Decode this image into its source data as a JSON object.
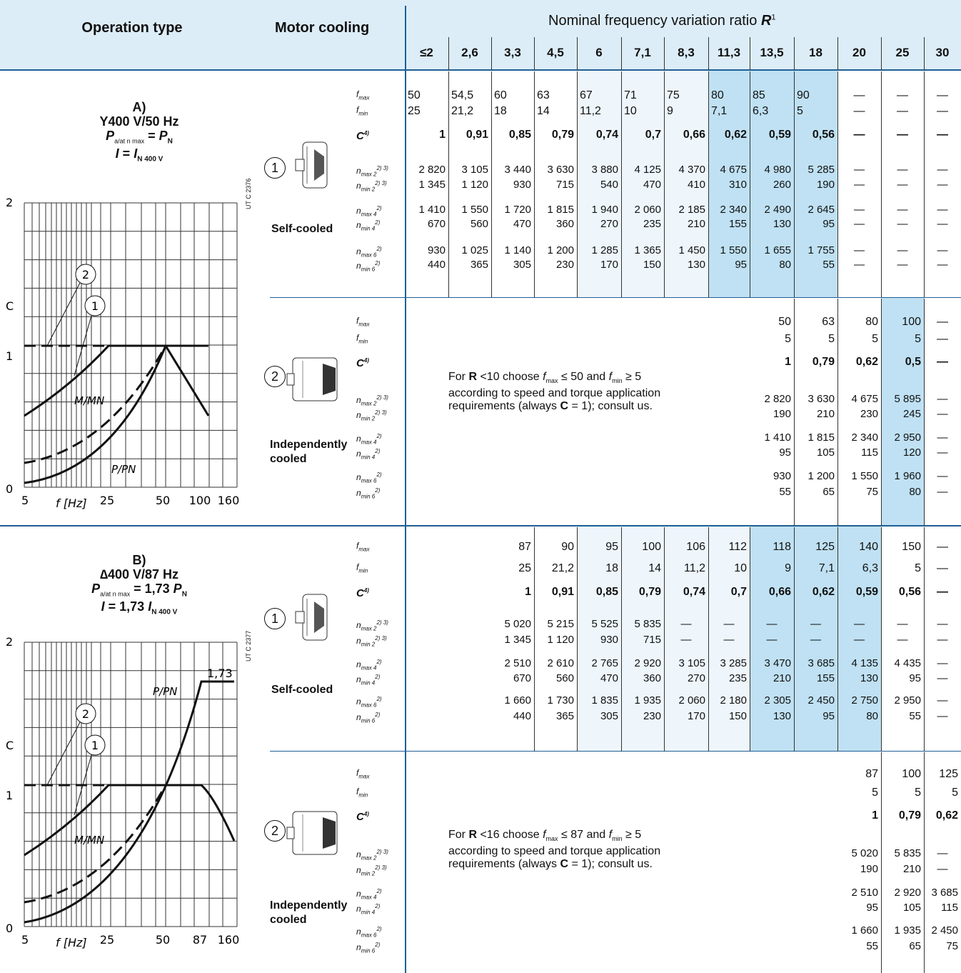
{
  "header": {
    "operation_type": "Operation type",
    "motor_cooling": "Motor cooling",
    "ratio_title": "Nominal frequency variation ratio",
    "ratio_symbol": "R",
    "ratio_sup": "1",
    "ratios": [
      "≤2",
      "2,6",
      "3,3",
      "4,5",
      "6",
      "7,1",
      "8,3",
      "11,3",
      "13,5",
      "18",
      "20",
      "25",
      "30"
    ]
  },
  "row_labels": {
    "fmax": "f",
    "fmax_sub": "max",
    "fmin": "f",
    "fmin_sub": "min",
    "C": "C",
    "C_sup": "4)",
    "nmax2": "n",
    "nmax2_sub": "max 2",
    "nmax2_sup": "2) 3)",
    "nmin2": "n",
    "nmin2_sub": "min 2",
    "nmin2_sup": "2) 3)",
    "nmax4": "n",
    "nmax4_sub": "max 4",
    "nmax4_sup": "2)",
    "nmin4": "n",
    "nmin4_sub": "min 4",
    "nmin4_sup": "2)",
    "nmax6": "n",
    "nmax6_sub": "max 6",
    "nmax6_sup": "2)",
    "nmin6": "n",
    "nmin6_sub": "min 6",
    "nmin6_sup": "2)"
  },
  "cooling": {
    "self": "Self-cooled",
    "indep_1": "Independently",
    "indep_2": "cooled",
    "num1": "1",
    "num2": "2"
  },
  "section_a": {
    "label": "A)",
    "line1": "Y400 V/50 Hz",
    "line2_p": "P",
    "line2_sub": "a/at n max",
    "line2_eq": " = ",
    "line2_pn": "P",
    "line2_pn_sub": "N",
    "line3_i": "I",
    "line3_eq": " = ",
    "line3_in": "I",
    "line3_in_sub": "N 400 V",
    "code": "UT C 2376",
    "graph": {
      "y_ticks": [
        "2",
        "C",
        "1",
        "0"
      ],
      "x_ticks": [
        "5",
        "25",
        "50",
        "100",
        "160"
      ],
      "xlabel": "f [Hz]",
      "curve1": "M/M",
      "curve1_sub": "N",
      "curve2": "P/P",
      "curve2_sub": "N",
      "marker1": "1",
      "marker2": "2"
    },
    "self": {
      "fmax": [
        "50",
        "54,5",
        "60",
        "63",
        "67",
        "71",
        "75",
        "80",
        "85",
        "90",
        "—",
        "—",
        "—"
      ],
      "fmin": [
        "25",
        "21,2",
        "18",
        "14",
        "11,2",
        "10",
        "9",
        "7,1",
        "6,3",
        "5",
        "—",
        "—",
        "—"
      ],
      "C": [
        "1",
        "0,91",
        "0,85",
        "0,79",
        "0,74",
        "0,7",
        "0,66",
        "0,62",
        "0,59",
        "0,56",
        "—",
        "—",
        "—"
      ],
      "nmax2": [
        "2 820",
        "3 105",
        "3 440",
        "3 630",
        "3 880",
        "4 125",
        "4 370",
        "4 675",
        "4 980",
        "5 285",
        "—",
        "—",
        "—"
      ],
      "nmin2": [
        "1 345",
        "1 120",
        "930",
        "715",
        "540",
        "470",
        "410",
        "310",
        "260",
        "190",
        "—",
        "—",
        "—"
      ],
      "nmax4": [
        "1 410",
        "1 550",
        "1 720",
        "1 815",
        "1 940",
        "2 060",
        "2 185",
        "2 340",
        "2 490",
        "2 645",
        "—",
        "—",
        "—"
      ],
      "nmin4": [
        "670",
        "560",
        "470",
        "360",
        "270",
        "235",
        "210",
        "155",
        "130",
        "95",
        "—",
        "—",
        "—"
      ],
      "nmax6": [
        "930",
        "1 025",
        "1 140",
        "1 200",
        "1 285",
        "1 365",
        "1 450",
        "1 550",
        "1 655",
        "1 755",
        "—",
        "—",
        "—"
      ],
      "nmin6": [
        "440",
        "365",
        "305",
        "230",
        "170",
        "150",
        "130",
        "95",
        "80",
        "55",
        "—",
        "—",
        "—"
      ]
    },
    "indep": {
      "note_1": "For",
      "note_R": "R",
      "note_2": " <10 choose ",
      "note_f": "f",
      "note_fsub": "max",
      "note_3": " ≤ 50 and ",
      "note_f2": "f",
      "note_f2sub": "min",
      "note_4": " ≥ 5",
      "note_line2": "according to speed and torque application",
      "note_line3a": "requirements (always ",
      "note_C": "C",
      "note_line3b": " = 1); consult us.",
      "fmax": [
        "50",
        "63",
        "80",
        "100",
        "—"
      ],
      "fmin": [
        "5",
        "5",
        "5",
        "5",
        "—"
      ],
      "C": [
        "1",
        "0,79",
        "0,62",
        "0,5",
        "—"
      ],
      "nmax2": [
        "2 820",
        "3 630",
        "4 675",
        "5 895",
        "—"
      ],
      "nmin2": [
        "190",
        "210",
        "230",
        "245",
        "—"
      ],
      "nmax4": [
        "1 410",
        "1 815",
        "2 340",
        "2 950",
        "—"
      ],
      "nmin4": [
        "95",
        "105",
        "115",
        "120",
        "—"
      ],
      "nmax6": [
        "930",
        "1 200",
        "1 550",
        "1 960",
        "—"
      ],
      "nmin6": [
        "55",
        "65",
        "75",
        "80",
        "—"
      ]
    }
  },
  "section_b": {
    "label": "B)",
    "line1": "∆400 V/87 Hz",
    "line2_p": "P",
    "line2_sub": "a/at n max",
    "line2_eq": " = 1,73 ",
    "line2_pn": "P",
    "line2_pn_sub": "N",
    "line3_i": "I",
    "line3_eq": " = 1,73 ",
    "line3_in": "I",
    "line3_in_sub": "N 400 V",
    "code": "UT C 2377",
    "graph": {
      "y_ticks": [
        "2",
        "C",
        "1",
        "0"
      ],
      "x_ticks": [
        "5",
        "25",
        "50",
        "87",
        "160"
      ],
      "xlabel": "f [Hz]",
      "curve1": "M/M",
      "curve1_sub": "N",
      "curve2": "P/P",
      "curve2_sub": "N",
      "marker1": "1",
      "marker2": "2",
      "level": "1,73"
    },
    "self": {
      "fmax": [
        "87",
        "90",
        "95",
        "100",
        "106",
        "112",
        "118",
        "125",
        "140",
        "150",
        "—"
      ],
      "fmin": [
        "25",
        "21,2",
        "18",
        "14",
        "11,2",
        "10",
        "9",
        "7,1",
        "6,3",
        "5",
        "—"
      ],
      "C": [
        "1",
        "0,91",
        "0,85",
        "0,79",
        "0,74",
        "0,7",
        "0,66",
        "0,62",
        "0,59",
        "0,56",
        "—"
      ],
      "nmax2": [
        "5 020",
        "5 215",
        "5 525",
        "5 835",
        "—",
        "—",
        "—",
        "—",
        "—",
        "—",
        "—"
      ],
      "nmin2": [
        "1 345",
        "1 120",
        "930",
        "715",
        "—",
        "—",
        "—",
        "—",
        "—",
        "—",
        "—"
      ],
      "nmax4": [
        "2 510",
        "2 610",
        "2 765",
        "2 920",
        "3 105",
        "3 285",
        "3 470",
        "3 685",
        "4 135",
        "4 435",
        "—"
      ],
      "nmin4": [
        "670",
        "560",
        "470",
        "360",
        "270",
        "235",
        "210",
        "155",
        "130",
        "95",
        "—"
      ],
      "nmax6": [
        "1 660",
        "1 730",
        "1 835",
        "1 935",
        "2 060",
        "2 180",
        "2 305",
        "2 450",
        "2 750",
        "2 950",
        "—"
      ],
      "nmin6": [
        "440",
        "365",
        "305",
        "230",
        "170",
        "150",
        "130",
        "95",
        "80",
        "55",
        "—"
      ]
    },
    "indep": {
      "note_1": "For",
      "note_R": "R",
      "note_2": " <16 choose ",
      "note_f": "f",
      "note_fsub": "max",
      "note_3": " ≤ 87 and ",
      "note_f2": "f",
      "note_f2sub": "min",
      "note_4": " ≥ 5",
      "note_line2": "according to speed and torque application",
      "note_line3a": "requirements (always ",
      "note_C": "C",
      "note_line3b": " = 1); consult us.",
      "fmax": [
        "87",
        "100",
        "125"
      ],
      "fmin": [
        "5",
        "5",
        "5"
      ],
      "C": [
        "1",
        "0,79",
        "0,62"
      ],
      "nmax2": [
        "5 020",
        "5 835",
        "—"
      ],
      "nmin2": [
        "190",
        "210",
        "—"
      ],
      "nmax4": [
        "2 510",
        "2 920",
        "3 685"
      ],
      "nmin4": [
        "95",
        "105",
        "115"
      ],
      "nmax6": [
        "1 660",
        "1 935",
        "2 450"
      ],
      "nmin6": [
        "55",
        "65",
        "75"
      ]
    }
  },
  "colors": {
    "header_bg": "#dcedf8",
    "light": "#eef6fc",
    "mid": "#bfe1f3",
    "rule": "#1f5f96"
  }
}
